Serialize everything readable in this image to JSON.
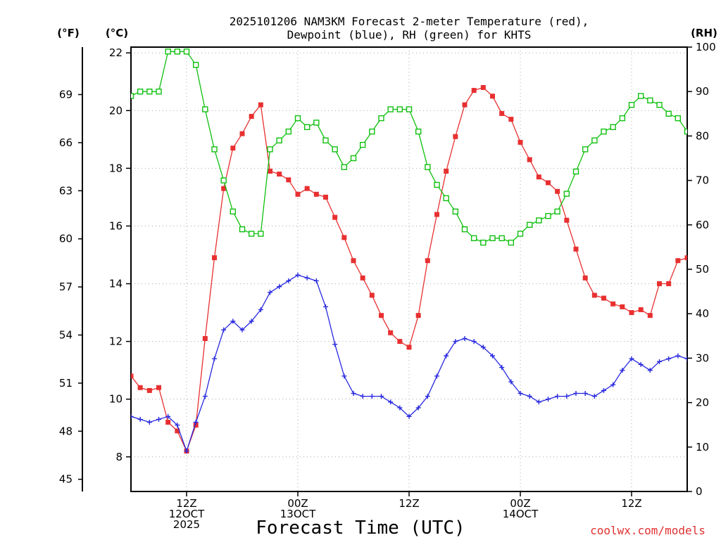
{
  "chart_data": {
    "type": "line",
    "title_lines": [
      "2025101206 NAM3KM Forecast 2-meter Temperature (red),",
      "Dewpoint (blue), RH (green) for KHTS"
    ],
    "xlabel": "Forecast Time (UTC)",
    "x_unit": "forecast hour from 2025-10-12 06Z",
    "xlim": [
      0,
      60
    ],
    "y_left_label": "(°C)",
    "y_left_ticks": [
      8,
      10,
      12,
      14,
      16,
      18,
      20,
      22
    ],
    "ylim_c": [
      6.8,
      22.2
    ],
    "y_far_left_label": "(°F)",
    "y_far_left_ticks": [
      45,
      48,
      51,
      54,
      57,
      60,
      63,
      66,
      69
    ],
    "y_right_label": "(RH)",
    "y_right_ticks": [
      0,
      10,
      20,
      30,
      40,
      50,
      60,
      70,
      80,
      90,
      100
    ],
    "ylim_rh": [
      0,
      100
    ],
    "x_ticks": [
      {
        "x": 6,
        "lines": [
          "12Z",
          "12OCT",
          "2025"
        ]
      },
      {
        "x": 18,
        "lines": [
          "00Z",
          "13OCT"
        ]
      },
      {
        "x": 30,
        "lines": [
          "12Z"
        ]
      },
      {
        "x": 42,
        "lines": [
          "00Z",
          "14OCT"
        ]
      },
      {
        "x": 54,
        "lines": [
          "12Z"
        ]
      }
    ],
    "series": [
      {
        "name": "Temperature",
        "unit": "C",
        "color": "#e83030",
        "marker": "filled-square",
        "x": [
          0,
          1,
          2,
          3,
          4,
          5,
          6,
          7,
          8,
          9,
          10,
          11,
          12,
          13,
          14,
          15,
          16,
          17,
          18,
          19,
          20,
          21,
          22,
          23,
          24,
          25,
          26,
          27,
          28,
          29,
          30,
          31,
          32,
          33,
          34,
          35,
          36,
          37,
          38,
          39,
          40,
          41,
          42,
          43,
          44,
          45,
          46,
          47,
          48,
          49,
          50,
          51,
          52,
          53,
          54,
          55,
          56,
          57,
          58,
          59,
          60
        ],
        "values": [
          10.8,
          10.4,
          10.3,
          10.4,
          9.2,
          8.9,
          8.2,
          9.1,
          12.1,
          14.9,
          17.3,
          18.7,
          19.2,
          19.8,
          20.2,
          17.9,
          17.8,
          17.6,
          17.1,
          17.3,
          17.1,
          17.0,
          16.3,
          15.6,
          14.8,
          14.2,
          13.6,
          12.9,
          12.3,
          12.0,
          11.8,
          12.9,
          14.8,
          16.4,
          17.9,
          19.1,
          20.2,
          20.7,
          20.8,
          20.5,
          19.9,
          19.7,
          18.9,
          18.3,
          17.7,
          17.5,
          17.2,
          16.2,
          15.2,
          14.2,
          13.6,
          13.5,
          13.3,
          13.2,
          13.0,
          13.1,
          12.9,
          14.0,
          14.0,
          14.8,
          14.9
        ]
      },
      {
        "name": "Dewpoint",
        "unit": "C",
        "color": "#2828e0",
        "marker": "plus",
        "x": [
          0,
          1,
          2,
          3,
          4,
          5,
          6,
          7,
          8,
          9,
          10,
          11,
          12,
          13,
          14,
          15,
          16,
          17,
          18,
          19,
          20,
          21,
          22,
          23,
          24,
          25,
          26,
          27,
          28,
          29,
          30,
          31,
          32,
          33,
          34,
          35,
          36,
          37,
          38,
          39,
          40,
          41,
          42,
          43,
          44,
          45,
          46,
          47,
          48,
          49,
          50,
          51,
          52,
          53,
          54,
          55,
          56,
          57,
          58,
          59,
          60
        ],
        "values": [
          9.4,
          9.3,
          9.2,
          9.3,
          9.4,
          9.1,
          8.2,
          9.2,
          10.1,
          11.4,
          12.4,
          12.7,
          12.4,
          12.7,
          13.1,
          13.7,
          13.9,
          14.1,
          14.3,
          14.2,
          14.1,
          13.2,
          11.9,
          10.8,
          10.2,
          10.1,
          10.1,
          10.1,
          9.9,
          9.7,
          9.4,
          9.7,
          10.1,
          10.8,
          11.5,
          12.0,
          12.1,
          12.0,
          11.8,
          11.5,
          11.1,
          10.6,
          10.2,
          10.1,
          9.9,
          10.0,
          10.1,
          10.1,
          10.2,
          10.2,
          10.1,
          10.3,
          10.5,
          11.0,
          11.4,
          11.2,
          11.0,
          11.3,
          11.4,
          11.5,
          11.4
        ]
      },
      {
        "name": "RH",
        "unit": "%",
        "color": "#10c010",
        "marker": "open-square",
        "x": [
          0,
          1,
          2,
          3,
          4,
          5,
          6,
          7,
          8,
          9,
          10,
          11,
          12,
          13,
          14,
          15,
          16,
          17,
          18,
          19,
          20,
          21,
          22,
          23,
          24,
          25,
          26,
          27,
          28,
          29,
          30,
          31,
          32,
          33,
          34,
          35,
          36,
          37,
          38,
          39,
          40,
          41,
          42,
          43,
          44,
          45,
          46,
          47,
          48,
          49,
          50,
          51,
          52,
          53,
          54,
          55,
          56,
          57,
          58,
          59,
          60
        ],
        "values": [
          89,
          90,
          90,
          90,
          99,
          99,
          99,
          96,
          86,
          77,
          70,
          63,
          59,
          58,
          58,
          77,
          79,
          81,
          84,
          82,
          83,
          79,
          77,
          73,
          75,
          78,
          81,
          84,
          86,
          86,
          86,
          81,
          73,
          69,
          66,
          63,
          59,
          57,
          56,
          57,
          57,
          56,
          58,
          60,
          61,
          62,
          63,
          67,
          72,
          77,
          79,
          81,
          82,
          84,
          87,
          89,
          88,
          87,
          85,
          84,
          81
        ]
      }
    ]
  },
  "credit": "coolwx.com/models"
}
